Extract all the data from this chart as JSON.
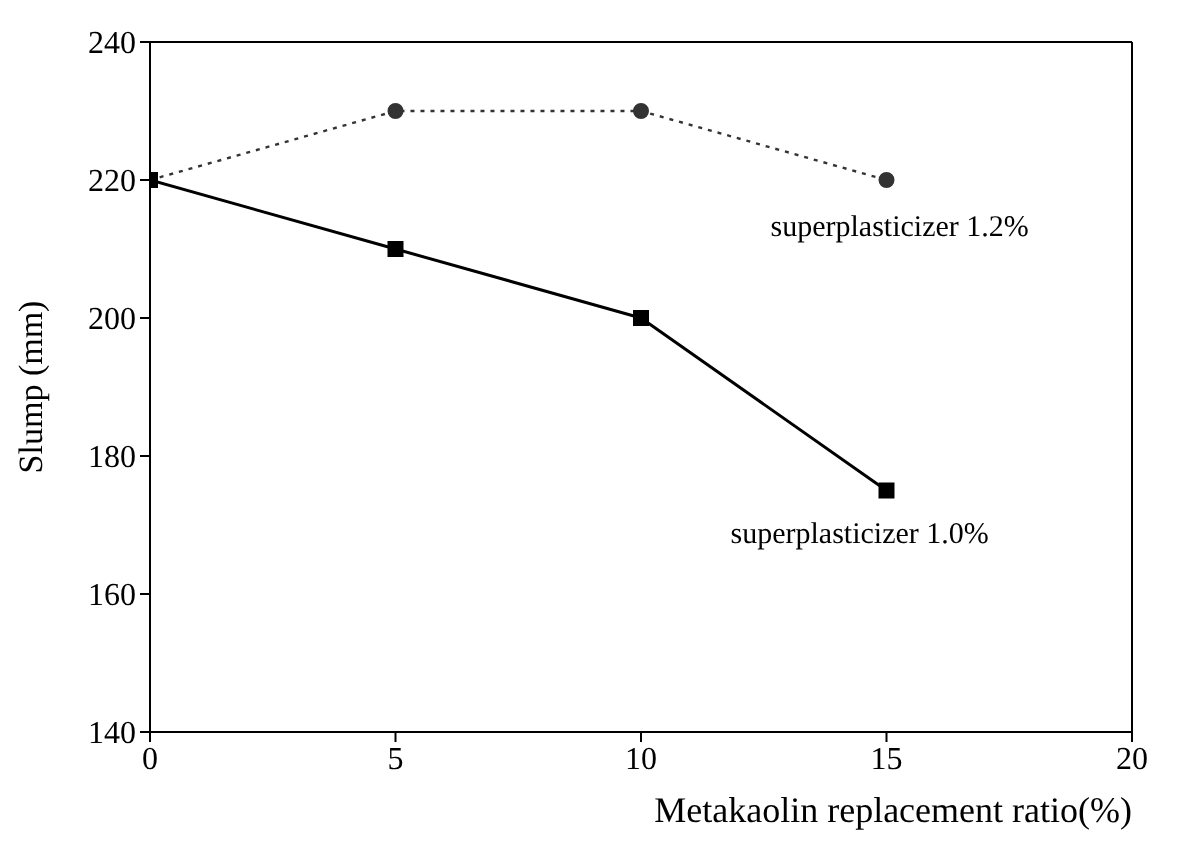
{
  "chart_data": {
    "type": "line",
    "xlabel": "Metakaolin replacement ratio(%)",
    "ylabel": "Slump (mm)",
    "x": [
      0,
      5,
      10,
      15
    ],
    "series": [
      {
        "name": "superplasticizer 1.2%",
        "color": "#333333",
        "values": [
          220,
          230,
          230,
          220
        ],
        "marker": "circle",
        "line_style": "dotted"
      },
      {
        "name": "superplasticizer 1.0%",
        "color": "#000000",
        "values": [
          220,
          210,
          200,
          175
        ],
        "marker": "square",
        "line_style": "solid"
      }
    ],
    "xlim": [
      0,
      20
    ],
    "xticks": [
      0,
      5,
      10,
      15,
      20
    ],
    "ylim": [
      140,
      240
    ],
    "yticks": [
      140,
      160,
      180,
      200,
      220,
      240
    ],
    "grid": false,
    "legend": false
  }
}
